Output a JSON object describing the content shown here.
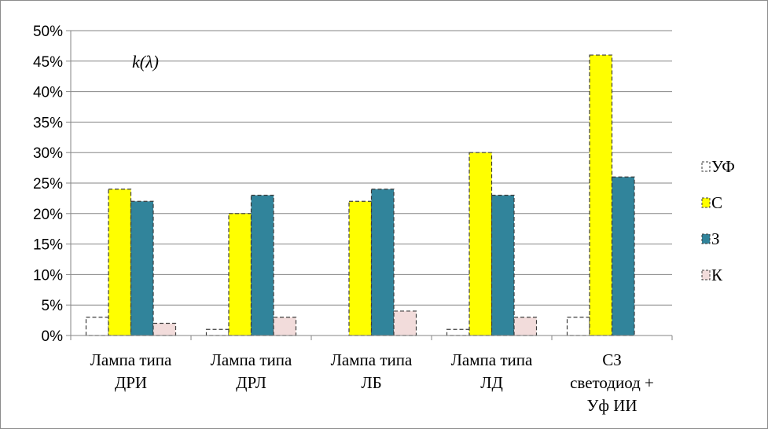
{
  "chart_data": {
    "type": "bar",
    "title": "",
    "annotation": "k(λ)",
    "xlabel": "",
    "ylabel": "",
    "ylim": [
      0,
      50
    ],
    "y_ticks": [
      "0%",
      "5%",
      "10%",
      "15%",
      "20%",
      "25%",
      "30%",
      "35%",
      "40%",
      "45%",
      "50%"
    ],
    "grid": true,
    "legend_position": "right",
    "categories": [
      [
        "Лампа типа",
        "ДРИ"
      ],
      [
        "Лампа типа",
        "ДРЛ"
      ],
      [
        "Лампа типа",
        "ЛБ"
      ],
      [
        "Лампа типа",
        "ЛД"
      ],
      [
        "СЗ",
        "светодиод +",
        "Уф ИИ"
      ]
    ],
    "series": [
      {
        "name": "УФ",
        "color": "#ffffff",
        "values": [
          3,
          1,
          0,
          1,
          3
        ]
      },
      {
        "name": "С",
        "color": "#ffff00",
        "values": [
          24,
          20,
          22,
          30,
          46
        ]
      },
      {
        "name": "З",
        "color": "#31849b",
        "values": [
          22,
          23,
          24,
          23,
          26
        ]
      },
      {
        "name": "К",
        "color": "#f2dcdb",
        "values": [
          2,
          3,
          4,
          3,
          0
        ]
      }
    ]
  }
}
